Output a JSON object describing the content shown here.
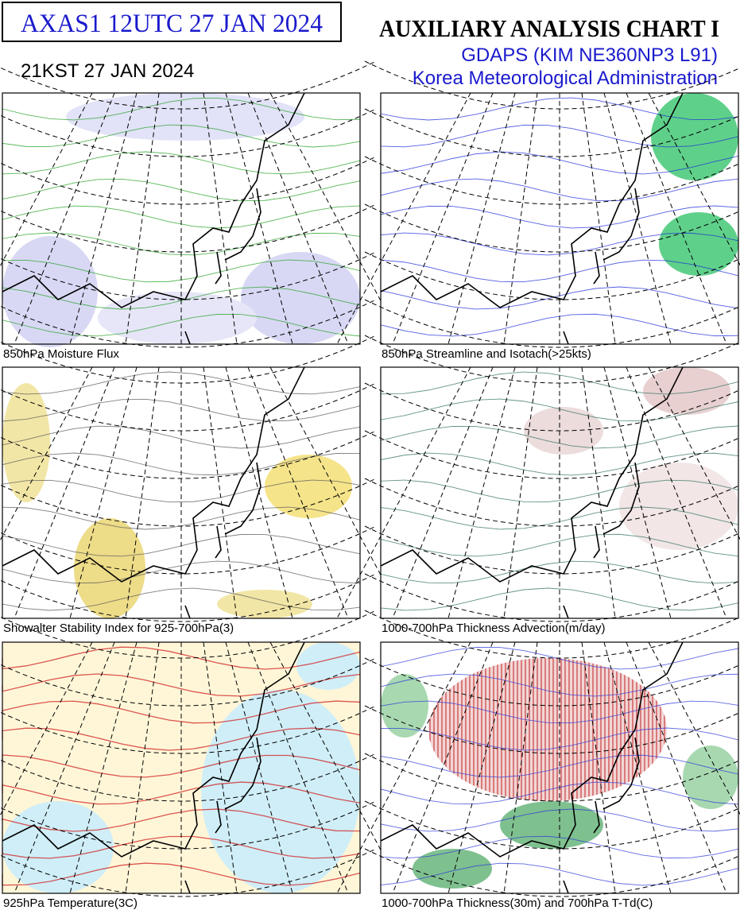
{
  "header": {
    "box_title": "AXAS1  12UTC 27 JAN 2024",
    "title": "AUXILIARY ANALYSIS CHART  I",
    "local_time": "21KST 27 JAN 2024",
    "model": "GDAPS (KIM NE360NP3 L91)",
    "agency": "Korea Meteorological Administration"
  },
  "panels": [
    {
      "caption": "850hPa Moisture Flux"
    },
    {
      "caption": "850hPa Streamline and Isotach(>25kts)"
    },
    {
      "caption": "Showalter Stability Index for 925-700hPa(3)"
    },
    {
      "caption": "1000-700hPa Thickness Advection(m/day)"
    },
    {
      "caption": "925hPa Temperature(3C)"
    },
    {
      "caption": "1000-700hPa Thickness(30m) and 700hPa T-Td(C)"
    }
  ]
}
